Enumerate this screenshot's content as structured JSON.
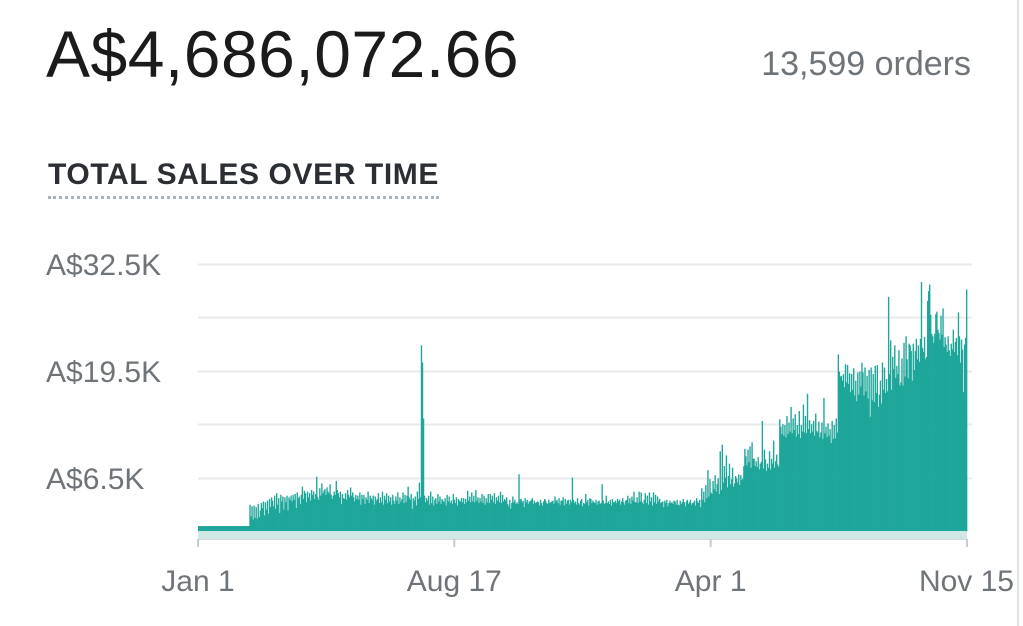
{
  "summary": {
    "total_sales": "A$4,686,072.66",
    "orders": "13,599 orders"
  },
  "chart_data": {
    "type": "bar",
    "title": "TOTAL SALES OVER TIME",
    "xlabel": "",
    "ylabel": "",
    "bar_color": "#1ea69a",
    "baseline_color": "#cfe7e5",
    "grid_color": "#e8eaed",
    "grid": true,
    "ylim": [
      0,
      32500
    ],
    "y_ticks": [
      {
        "value": 6500,
        "label": "A$6.5K"
      },
      {
        "value": 19500,
        "label": "A$19.5K"
      },
      {
        "value": 32500,
        "label": "A$32.5K"
      }
    ],
    "x_ticks": [
      "Jan 1",
      "Aug 17",
      "Apr 1",
      "Nov 15"
    ],
    "series": [
      {
        "values": [
          600,
          600,
          600,
          600,
          600,
          600,
          600,
          600,
          600,
          600,
          600,
          600,
          600,
          600,
          600,
          600,
          600,
          600,
          600,
          600,
          600,
          600,
          600,
          600,
          600,
          600,
          600,
          600,
          600,
          600,
          600,
          600,
          600,
          600,
          600,
          600,
          600,
          600,
          600,
          600,
          600,
          600,
          600,
          600,
          600,
          600,
          600,
          600,
          600,
          600,
          3200,
          1800,
          3000,
          1400,
          3100,
          1600,
          2900,
          1500,
          3300,
          1700,
          2500,
          3400,
          2800,
          3600,
          1900,
          3500,
          2600,
          3700,
          2100,
          3900,
          2900,
          4100,
          3700,
          3000,
          4300,
          2700,
          4600,
          3200,
          4000,
          2200,
          4400,
          3600,
          4200,
          2600,
          4100,
          3500,
          4300,
          2500,
          4100,
          3800,
          4300,
          3600,
          4400,
          3800,
          4500,
          2800,
          4700,
          4000,
          4200,
          3300,
          4400,
          5400,
          3900,
          4900,
          4600,
          3500,
          4800,
          4100,
          4600,
          3700,
          5000,
          4400,
          4800,
          3900,
          4500,
          6600,
          4100,
          3800,
          5200,
          4300,
          5800,
          4600,
          4900,
          5100,
          4400,
          5300,
          4800,
          4600,
          5700,
          4400,
          3900,
          4300,
          4800,
          4400,
          6100,
          5000,
          4600,
          4100,
          4800,
          3300,
          4500,
          4000,
          3900,
          4600,
          3800,
          5000,
          4400,
          4100,
          5300,
          4300,
          4700,
          4100,
          3600,
          4400,
          3900,
          4300,
          3800,
          4700,
          3200,
          4400,
          3900,
          4400,
          3300,
          4100,
          3800,
          4800,
          3400,
          4300,
          4000,
          3800,
          4300,
          3200,
          4200,
          3700,
          3900,
          4600,
          3400,
          4100,
          3500,
          4800,
          3200,
          4300,
          3800,
          4600,
          3400,
          4300,
          3600,
          4100,
          3200,
          4400,
          3700,
          3300,
          4200,
          3700,
          4700,
          3300,
          4100,
          3600,
          3900,
          4700,
          3400,
          4400,
          3500,
          4300,
          5400,
          4100,
          3800,
          4500,
          2700,
          4000,
          3700,
          4200,
          3100,
          4800,
          3900,
          5900,
          4100,
          22600,
          20500,
          13700,
          4300,
          3500,
          4000,
          3700,
          4300,
          3200,
          4800,
          3400,
          4200,
          3100,
          3800,
          4000,
          3300,
          4500,
          3600,
          4200,
          3300,
          3900,
          3700,
          3500,
          4000,
          3100,
          4400,
          3600,
          4200,
          3400,
          3700,
          3300,
          4500,
          3800,
          3400,
          4100,
          3100,
          3900,
          3700,
          3600,
          4000,
          3500,
          4000,
          3300,
          3900,
          3500,
          4900,
          3700,
          4200,
          3500,
          4700,
          3600,
          4300,
          3500,
          5000,
          3700,
          4100,
          3400,
          4000,
          3600,
          4500,
          3400,
          4300,
          3200,
          4000,
          3500,
          4500,
          3400,
          4500,
          3800,
          4300,
          3500,
          4600,
          3300,
          4100,
          3700,
          4300,
          3500,
          4800,
          3400,
          4400,
          3600,
          3900,
          3700,
          4100,
          3300,
          3000,
          3800,
          2700,
          3400,
          4200,
          3500,
          3800,
          3300,
          3500,
          3300,
          6900,
          3800,
          3900,
          3500,
          3700,
          2900,
          4000,
          3500,
          3800,
          3300,
          3600,
          3600,
          3800,
          4000,
          3300,
          3700,
          3400,
          3500,
          3600,
          3500,
          3100,
          3800,
          3400,
          3100,
          3600,
          3900,
          3700,
          3400,
          3300,
          3800,
          3400,
          3500,
          3600,
          3700,
          3300,
          4200,
          3600,
          3800,
          3400,
          4000,
          3200,
          3700,
          3700,
          4100,
          3100,
          3900,
          3300,
          3700,
          3800,
          3200,
          3800,
          3500,
          6500,
          3800,
          3400,
          3600,
          3200,
          4000,
          3400,
          3200,
          3700,
          3900,
          3000,
          3400,
          3300,
          4500,
          3500,
          3800,
          3100,
          4000,
          3900,
          3400,
          3700,
          3500,
          3400,
          3800,
          3200,
          3600,
          3700,
          3300,
          3400,
          5700,
          3700,
          3300,
          3400,
          4300,
          3400,
          3600,
          3300,
          3800,
          3100,
          3900,
          3500,
          3500,
          3700,
          3400,
          3900,
          3600,
          3800,
          3200,
          3600,
          4000,
          3500,
          3200,
          3700,
          3800,
          4300,
          3400,
          4000,
          3300,
          4200,
          3700,
          4800,
          3500,
          3500,
          4100,
          3400,
          4800,
          3600,
          4700,
          3500,
          3300,
          3800,
          4600,
          3400,
          4300,
          3200,
          4700,
          3600,
          4100,
          3100,
          4700,
          3500,
          4400,
          3300,
          4200,
          3600,
          3900,
          3400,
          3500,
          3600,
          2900,
          3700,
          3400,
          3800,
          3000,
          3400,
          3700,
          3400,
          3500,
          3300,
          3700,
          3600,
          3200,
          3800,
          3200,
          3100,
          3700,
          3300,
          3500,
          3900,
          3500,
          3000,
          3600,
          3800,
          3300,
          3500,
          3800,
          3200,
          3400,
          3500,
          3700,
          3100,
          4000,
          3600,
          3400,
          3800,
          2900,
          5200,
          3800,
          4800,
          3500,
          5600,
          4000,
          7400,
          4200,
          6300,
          4700,
          4500,
          6100,
          5100,
          6800,
          4800,
          5700,
          6400,
          4500,
          9700,
          5000,
          10500,
          5900,
          7900,
          6500,
          9200,
          5300,
          6700,
          8200,
          5700,
          6300,
          7700,
          5400,
          5800,
          6700,
          6400,
          5900,
          6900,
          5600,
          6800,
          6200,
          6400,
          7900,
          10000,
          9100,
          8000,
          9900,
          8400,
          10300,
          7700,
          10800,
          8800,
          8800,
          7900,
          8500,
          7800,
          9000,
          7500,
          8200,
          8400,
          13400,
          7600,
          9900,
          8700,
          7300,
          8200,
          7700,
          9700,
          7500,
          8800,
          8200,
          11000,
          7700,
          8500,
          9300,
          8100,
          7800,
          13600,
          12700,
          11800,
          13000,
          11600,
          12900,
          11400,
          14000,
          11800,
          13200,
          12100,
          15100,
          11900,
          13700,
          12300,
          14200,
          11500,
          12900,
          11800,
          14600,
          11300,
          12900,
          12100,
          15400,
          12000,
          14000,
          11900,
          16700,
          12400,
          13500,
          11900,
          13000,
          12100,
          13400,
          11600,
          14300,
          12200,
          12000,
          13300,
          11400,
          12000,
          13200,
          11200,
          16200,
          11900,
          12700,
          11400,
          13100,
          11600,
          12400,
          10700,
          13400,
          11200,
          12900,
          11300,
          13700,
          12000,
          21500,
          19400,
          18800,
          18900,
          18300,
          19100,
          17500,
          20300,
          18100,
          20200,
          17900,
          19200,
          16900,
          19100,
          17200,
          19800,
          16500,
          18300,
          15800,
          19300,
          16600,
          19400,
          17600,
          20500,
          19300,
          16500,
          19900,
          17000,
          18900,
          16100,
          19600,
          13900,
          19900,
          15900,
          19100,
          15700,
          20100,
          16800,
          20200,
          15100,
          16600,
          18300,
          15500,
          20500,
          17200,
          19900,
          16800,
          18500,
          17000,
          28500,
          19100,
          23200,
          17200,
          21200,
          19700,
          22600,
          18600,
          20100,
          19100,
          22000,
          17700,
          18100,
          21000,
          17700,
          22900,
          18800,
          23700,
          20900,
          18600,
          22800,
          22600,
          21900,
          18300,
          22800,
          19600,
          21900,
          23400,
          20900,
          22600,
          20600,
          23400,
          30300,
          22300,
          21800,
          23600,
          20900,
          21200,
          28000,
          29200,
          30000,
          26300,
          24000,
          23700,
          22900,
          24000,
          26400,
          26700,
          24500,
          24100,
          23300,
          26200,
          23900,
          27100,
          22400,
          23600,
          22700,
          21800,
          23700,
          22000,
          21300,
          22800,
          22100,
          24500,
          21800,
          23000,
          23500,
          21400,
          26600,
          23700,
          20500,
          23300,
          22100,
          16900,
          22700,
          23500,
          29400
        ]
      }
    ]
  }
}
